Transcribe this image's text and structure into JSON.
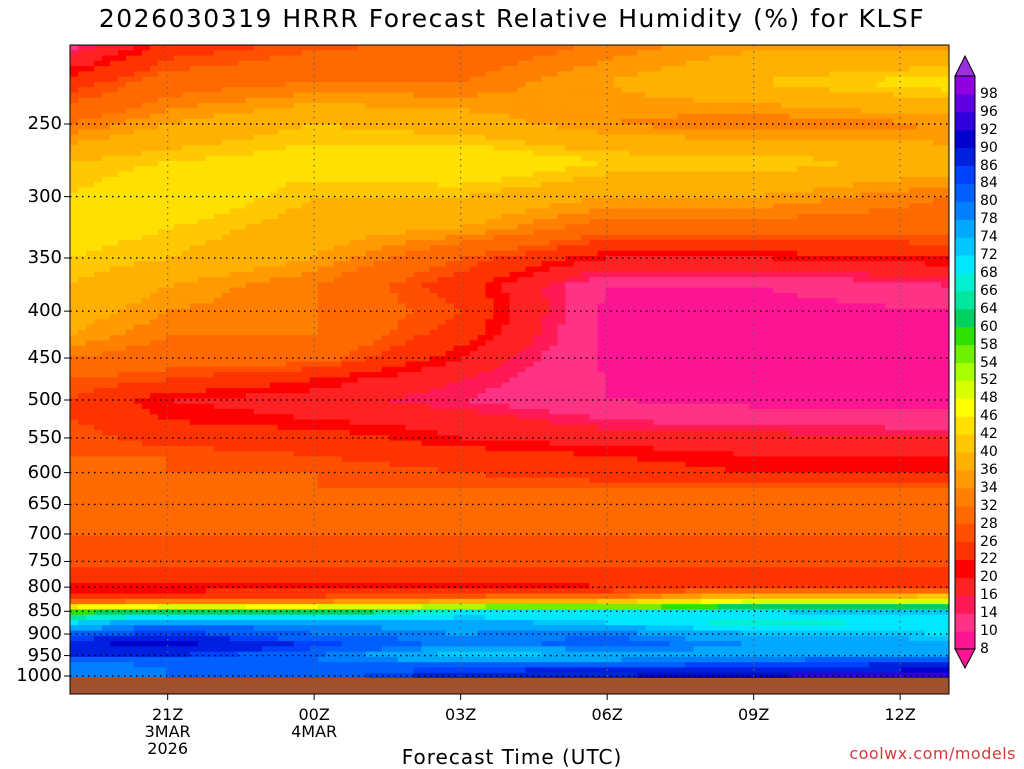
{
  "title": "2026030319 HRRR Forecast Relative Humidity (%) for KLSF",
  "credit": "coolwx.com/models",
  "chart_data": {
    "type": "heatmap",
    "title": "2026030319 HRRR Forecast Relative Humidity (%) for KLSF",
    "xlabel": "Forecast Time (UTC)",
    "ylabel": "",
    "x_ticks": [
      {
        "lines": [
          "21Z",
          "3MAR",
          "2026"
        ],
        "hour": 21
      },
      {
        "lines": [
          "00Z",
          "4MAR"
        ],
        "hour": 24
      },
      {
        "lines": [
          "03Z"
        ],
        "hour": 27
      },
      {
        "lines": [
          "06Z"
        ],
        "hour": 30
      },
      {
        "lines": [
          "09Z"
        ],
        "hour": 33
      },
      {
        "lines": [
          "12Z"
        ],
        "hour": 36
      }
    ],
    "xlim": [
      19,
      37
    ],
    "y_ticks": [
      250,
      300,
      350,
      400,
      450,
      500,
      550,
      600,
      650,
      700,
      750,
      800,
      850,
      900,
      950,
      1000
    ],
    "ylim_hPa": [
      200,
      1000
    ],
    "y_scale": "log-pressure",
    "grid": true,
    "colorbar_levels": [
      8,
      10,
      14,
      16,
      20,
      22,
      26,
      28,
      32,
      34,
      36,
      40,
      42,
      46,
      48,
      52,
      54,
      58,
      60,
      64,
      66,
      68,
      72,
      74,
      78,
      80,
      84,
      86,
      90,
      92,
      96,
      98
    ],
    "colorbar_colors": [
      "#ff1493",
      "#ff3385",
      "#ff1a55",
      "#ff2222",
      "#ff0000",
      "#ff3300",
      "#ff5000",
      "#ff6a00",
      "#ff8000",
      "#ff9a00",
      "#ffb000",
      "#ffc800",
      "#ffe000",
      "#ffff00",
      "#d8ff00",
      "#a8ff00",
      "#70f000",
      "#30e000",
      "#00d060",
      "#00e8a0",
      "#00f0d0",
      "#00e8ff",
      "#00c8ff",
      "#00a8ff",
      "#0080ff",
      "#0060ff",
      "#0040ff",
      "#0020e0",
      "#0000d0",
      "#3000e0",
      "#6000e0",
      "#9000e0"
    ],
    "profile_levels_hPa": [
      200,
      225,
      250,
      275,
      300,
      325,
      350,
      375,
      400,
      425,
      450,
      475,
      500,
      525,
      550,
      575,
      600,
      625,
      650,
      675,
      700,
      725,
      750,
      775,
      800,
      825,
      850,
      875,
      900,
      925,
      950,
      975,
      1000
    ],
    "profile_hours": [
      19,
      21,
      24,
      27,
      30,
      33,
      37
    ],
    "rh": [
      [
        10,
        22,
        26,
        28,
        32,
        34,
        32
      ],
      [
        24,
        30,
        32,
        32,
        36,
        40,
        44
      ],
      [
        32,
        36,
        40,
        38,
        34,
        32,
        34
      ],
      [
        40,
        42,
        44,
        46,
        42,
        42,
        38
      ],
      [
        42,
        46,
        40,
        40,
        36,
        36,
        32
      ],
      [
        44,
        42,
        38,
        36,
        30,
        30,
        30
      ],
      [
        42,
        40,
        36,
        28,
        20,
        20,
        22
      ],
      [
        40,
        36,
        32,
        24,
        10,
        10,
        14
      ],
      [
        38,
        34,
        32,
        26,
        9,
        8,
        10
      ],
      [
        36,
        32,
        32,
        24,
        9,
        8,
        9
      ],
      [
        32,
        30,
        30,
        20,
        9,
        8,
        8
      ],
      [
        28,
        26,
        22,
        16,
        10,
        9,
        8
      ],
      [
        26,
        20,
        18,
        14,
        10,
        9,
        9
      ],
      [
        26,
        22,
        20,
        18,
        14,
        12,
        12
      ],
      [
        28,
        24,
        24,
        20,
        18,
        18,
        16
      ],
      [
        28,
        28,
        26,
        24,
        22,
        20,
        20
      ],
      [
        28,
        28,
        28,
        26,
        24,
        22,
        22
      ],
      [
        28,
        30,
        28,
        28,
        28,
        28,
        28
      ],
      [
        28,
        30,
        30,
        30,
        30,
        28,
        30
      ],
      [
        28,
        28,
        30,
        30,
        30,
        30,
        30
      ],
      [
        28,
        28,
        28,
        28,
        28,
        28,
        28
      ],
      [
        26,
        26,
        26,
        26,
        26,
        26,
        26
      ],
      [
        28,
        28,
        28,
        28,
        28,
        28,
        28
      ],
      [
        24,
        24,
        24,
        24,
        24,
        24,
        24
      ],
      [
        20,
        20,
        20,
        20,
        22,
        24,
        24
      ],
      [
        26,
        26,
        28,
        30,
        34,
        44,
        46
      ],
      [
        58,
        62,
        60,
        68,
        70,
        72,
        74
      ],
      [
        72,
        78,
        78,
        76,
        72,
        66,
        70
      ],
      [
        82,
        86,
        80,
        78,
        80,
        74,
        72
      ],
      [
        90,
        92,
        86,
        78,
        82,
        78,
        76
      ],
      [
        86,
        86,
        80,
        72,
        74,
        76,
        76
      ],
      [
        78,
        80,
        80,
        84,
        84,
        86,
        88
      ],
      [
        78,
        80,
        82,
        88,
        90,
        92,
        94
      ]
    ]
  }
}
